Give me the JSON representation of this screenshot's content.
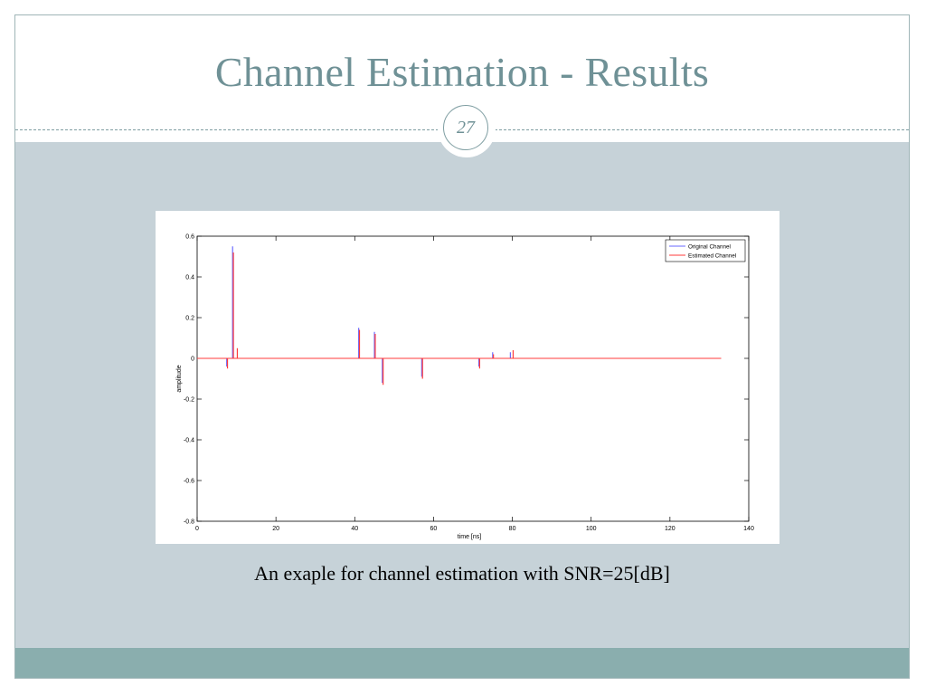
{
  "slide": {
    "title": "Channel Estimation - Results",
    "page_number": "27",
    "caption": "An exaple for channel estimation with SNR=25[dB]"
  },
  "colors": {
    "title": "#6f9196",
    "content_background": "#c6d2d8",
    "footer": "#8aaeae",
    "original_channel": "#6a6aff",
    "estimated_channel": "#ff3b3b"
  },
  "chart_data": {
    "type": "line",
    "xlabel": "time [ns]",
    "ylabel": "amplitude",
    "xlim": [
      0,
      140
    ],
    "ylim": [
      -0.8,
      0.6
    ],
    "x_ticks": [
      0,
      20,
      40,
      60,
      80,
      100,
      120,
      140
    ],
    "y_ticks": [
      -0.8,
      -0.6,
      -0.4,
      -0.2,
      0,
      0.2,
      0.4,
      0.6
    ],
    "x_tick_labels": [
      "0",
      "20",
      "40",
      "60",
      "80",
      "100",
      "120",
      "140"
    ],
    "y_tick_labels": [
      "-0.8",
      "-0.6",
      "-0.4",
      "-0.2",
      "0",
      "0.2",
      "0.4",
      "0.6"
    ],
    "grid": false,
    "legend_position": "top-right",
    "x_range_drawn": [
      0,
      133
    ],
    "series": [
      {
        "name": "Original Channel",
        "color": "#6a6aff",
        "impulses": [
          {
            "x": 7.5,
            "y": -0.04
          },
          {
            "x": 9.0,
            "y": 0.55
          },
          {
            "x": 41.0,
            "y": 0.15
          },
          {
            "x": 45.0,
            "y": 0.13
          },
          {
            "x": 47.0,
            "y": -0.12
          },
          {
            "x": 57.0,
            "y": -0.09
          },
          {
            "x": 71.5,
            "y": -0.04
          },
          {
            "x": 75.0,
            "y": 0.03
          },
          {
            "x": 79.5,
            "y": 0.03
          }
        ]
      },
      {
        "name": "Estimated Channel",
        "color": "#ff3b3b",
        "impulses": [
          {
            "x": 7.7,
            "y": -0.05
          },
          {
            "x": 9.2,
            "y": 0.52
          },
          {
            "x": 10.2,
            "y": 0.05
          },
          {
            "x": 41.2,
            "y": 0.14
          },
          {
            "x": 45.2,
            "y": 0.12
          },
          {
            "x": 47.2,
            "y": -0.13
          },
          {
            "x": 57.2,
            "y": -0.1
          },
          {
            "x": 71.7,
            "y": -0.05
          },
          {
            "x": 75.2,
            "y": 0.02
          },
          {
            "x": 80.2,
            "y": 0.04
          }
        ]
      }
    ]
  }
}
